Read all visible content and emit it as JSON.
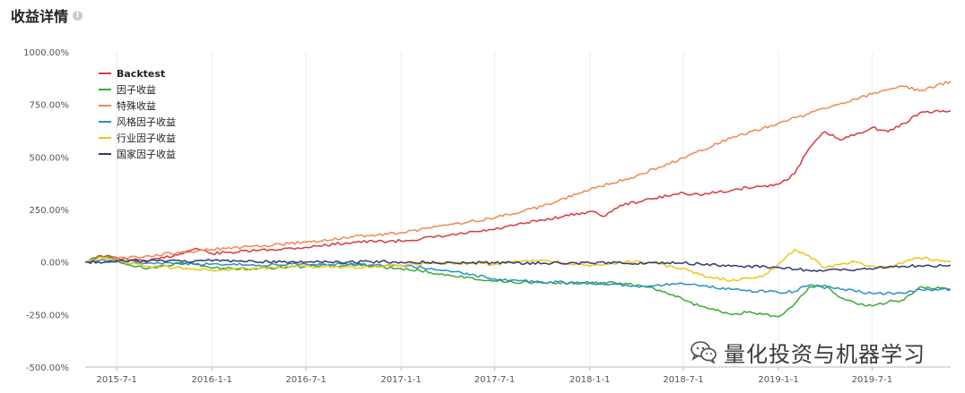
{
  "header": {
    "title": "收益详情",
    "info_glyph": "i"
  },
  "watermark": {
    "text": "量化投资与机器学习",
    "icon": "wechat-icon"
  },
  "chart_data": {
    "type": "line",
    "title": "",
    "xlabel": "",
    "ylabel": "",
    "x_range": [
      "2015-05-01",
      "2019-11-30"
    ],
    "ylim": [
      -500,
      1000
    ],
    "y_ticks": [
      1000,
      750,
      500,
      250,
      0,
      -250,
      -500
    ],
    "y_tick_labels": [
      "1000.00%",
      "750.00%",
      "500.00%",
      "250.00%",
      "0.00%",
      "-250.00%",
      "-500.00%"
    ],
    "x_ticks": [
      "2015-07-01",
      "2016-01-01",
      "2016-07-01",
      "2017-01-01",
      "2017-07-01",
      "2018-01-01",
      "2018-07-01",
      "2019-01-01",
      "2019-07-01"
    ],
    "x_tick_labels": [
      "2015-7-1",
      "2016-1-1",
      "2016-7-1",
      "2017-1-1",
      "2017-7-1",
      "2018-1-1",
      "2018-7-1",
      "2019-1-1",
      "2019-7-1"
    ],
    "grid": {
      "vertical": true,
      "horizontal": false
    },
    "legend_position": "top-left",
    "series": [
      {
        "name": "Backtest",
        "color": "#d83a3e",
        "x": [
          "2015-05-01",
          "2015-06-01",
          "2015-07-01",
          "2015-08-01",
          "2015-09-01",
          "2015-10-01",
          "2015-11-01",
          "2015-12-01",
          "2016-01-01",
          "2016-02-01",
          "2016-04-01",
          "2016-07-01",
          "2016-10-01",
          "2017-01-01",
          "2017-04-01",
          "2017-07-01",
          "2017-10-01",
          "2018-01-01",
          "2018-02-01",
          "2018-03-01",
          "2018-05-01",
          "2018-07-01",
          "2018-08-01",
          "2018-10-01",
          "2018-11-01",
          "2018-12-01",
          "2019-01-01",
          "2019-02-01",
          "2019-03-01",
          "2019-04-01",
          "2019-05-01",
          "2019-06-01",
          "2019-07-01",
          "2019-08-01",
          "2019-09-01",
          "2019-10-01",
          "2019-11-30"
        ],
        "y": [
          0,
          30,
          20,
          10,
          5,
          20,
          40,
          65,
          40,
          45,
          55,
          70,
          95,
          100,
          125,
          155,
          200,
          240,
          220,
          270,
          300,
          330,
          320,
          340,
          355,
          360,
          370,
          420,
          540,
          620,
          580,
          610,
          640,
          620,
          660,
          710,
          720
        ]
      },
      {
        "name": "因子收益",
        "color": "#3aaa35",
        "x": [
          "2015-05-01",
          "2015-06-01",
          "2015-07-01",
          "2015-08-01",
          "2015-09-01",
          "2015-10-01",
          "2015-11-01",
          "2015-12-01",
          "2016-01-01",
          "2016-04-01",
          "2016-07-01",
          "2016-10-01",
          "2017-01-01",
          "2017-04-01",
          "2017-07-01",
          "2017-10-01",
          "2018-01-01",
          "2018-03-01",
          "2018-05-01",
          "2018-07-01",
          "2018-08-01",
          "2018-09-01",
          "2018-10-01",
          "2018-11-01",
          "2018-12-01",
          "2019-01-01",
          "2019-02-01",
          "2019-03-01",
          "2019-04-01",
          "2019-05-01",
          "2019-06-01",
          "2019-07-01",
          "2019-08-01",
          "2019-09-01",
          "2019-10-01",
          "2019-11-30"
        ],
        "y": [
          0,
          30,
          10,
          -20,
          -30,
          -15,
          -5,
          -10,
          -30,
          -30,
          -20,
          -15,
          -30,
          -60,
          -90,
          -100,
          -100,
          -100,
          -120,
          -180,
          -210,
          -230,
          -250,
          -240,
          -250,
          -260,
          -200,
          -120,
          -110,
          -170,
          -200,
          -210,
          -190,
          -180,
          -120,
          -130
        ]
      },
      {
        "name": "特殊收益",
        "color": "#ee8a52",
        "x": [
          "2015-05-01",
          "2015-06-01",
          "2015-07-01",
          "2015-09-01",
          "2015-11-01",
          "2016-01-01",
          "2016-04-01",
          "2016-07-01",
          "2016-10-01",
          "2017-01-01",
          "2017-04-01",
          "2017-07-01",
          "2017-10-01",
          "2018-01-01",
          "2018-04-01",
          "2018-07-01",
          "2018-10-01",
          "2019-01-01",
          "2019-04-01",
          "2019-07-01",
          "2019-09-01",
          "2019-10-01",
          "2019-11-30"
        ],
        "y": [
          0,
          20,
          15,
          30,
          45,
          60,
          75,
          95,
          120,
          140,
          175,
          210,
          265,
          345,
          410,
          495,
          590,
          660,
          730,
          800,
          835,
          815,
          860
        ]
      },
      {
        "name": "风格因子收益",
        "color": "#2d8ec9",
        "x": [
          "2015-05-01",
          "2015-06-01",
          "2015-07-01",
          "2015-09-01",
          "2015-11-01",
          "2016-01-01",
          "2016-04-01",
          "2016-07-01",
          "2016-10-01",
          "2017-01-01",
          "2017-04-01",
          "2017-07-01",
          "2017-10-01",
          "2018-01-01",
          "2018-04-01",
          "2018-07-01",
          "2018-10-01",
          "2019-01-01",
          "2019-02-01",
          "2019-03-01",
          "2019-05-01",
          "2019-07-01",
          "2019-09-01",
          "2019-10-01",
          "2019-11-30"
        ],
        "y": [
          0,
          10,
          0,
          -5,
          -10,
          -10,
          -15,
          -10,
          -10,
          -15,
          -40,
          -80,
          -95,
          -100,
          -115,
          -105,
          -130,
          -145,
          -140,
          -110,
          -130,
          -150,
          -150,
          -130,
          -130
        ]
      },
      {
        "name": "行业因子收益",
        "color": "#f0c419",
        "x": [
          "2015-05-01",
          "2015-06-01",
          "2015-07-01",
          "2015-09-01",
          "2015-11-01",
          "2016-01-01",
          "2016-04-01",
          "2016-07-01",
          "2016-10-01",
          "2017-01-01",
          "2017-04-01",
          "2017-07-01",
          "2017-10-01",
          "2018-01-01",
          "2018-04-01",
          "2018-07-01",
          "2018-08-01",
          "2018-10-01",
          "2018-12-01",
          "2019-01-01",
          "2019-02-01",
          "2019-03-01",
          "2019-04-01",
          "2019-05-01",
          "2019-06-01",
          "2019-07-01",
          "2019-08-01",
          "2019-09-01",
          "2019-10-01",
          "2019-11-30"
        ],
        "y": [
          0,
          20,
          5,
          -20,
          -25,
          -40,
          -30,
          -20,
          -25,
          -15,
          -5,
          -10,
          10,
          -20,
          5,
          -30,
          -60,
          -90,
          -70,
          -10,
          60,
          30,
          -30,
          -10,
          0,
          -20,
          -30,
          0,
          20,
          0
        ]
      },
      {
        "name": "国家因子收益",
        "color": "#2f3a73",
        "x": [
          "2015-05-01",
          "2015-09-01",
          "2016-01-01",
          "2016-07-01",
          "2017-01-01",
          "2017-07-01",
          "2018-01-01",
          "2018-07-01",
          "2018-10-01",
          "2019-01-01",
          "2019-03-01",
          "2019-06-01",
          "2019-09-01",
          "2019-11-30"
        ],
        "y": [
          0,
          5,
          5,
          0,
          0,
          -5,
          -5,
          -5,
          -20,
          -25,
          -40,
          -35,
          -20,
          -15
        ]
      }
    ]
  }
}
